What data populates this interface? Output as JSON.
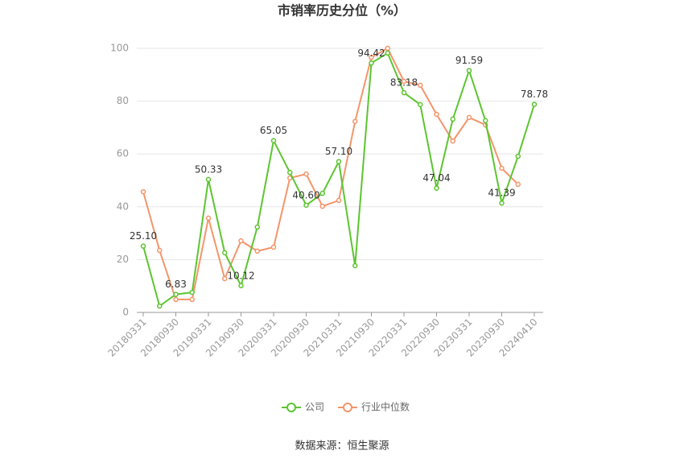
{
  "chart_data": {
    "type": "line",
    "title": "市销率历史分位（%）",
    "categories": [
      "20180331",
      null,
      "20180930",
      null,
      "20190331",
      null,
      "20190930",
      null,
      "20200331",
      null,
      "20200930",
      null,
      "20210331",
      null,
      "20210930",
      null,
      "20220331",
      null,
      "20220930",
      null,
      "20230331",
      null,
      "20230930",
      null,
      "20240410"
    ],
    "series": [
      {
        "name": "公司",
        "color": "#5cc530",
        "values": [
          25.1,
          2.4,
          6.83,
          7.6,
          50.33,
          22.6,
          10.12,
          32.3,
          65.05,
          53.0,
          40.6,
          45.1,
          57.1,
          17.7,
          94.42,
          98.2,
          83.18,
          78.7,
          47.04,
          73.2,
          91.59,
          72.6,
          41.39,
          59.1,
          78.78
        ],
        "value_labels": [
          "25.10",
          null,
          "6.83",
          null,
          "50.33",
          null,
          "10.12",
          null,
          "65.05",
          null,
          "40.60",
          null,
          "57.10",
          null,
          "94.42",
          null,
          "83.18",
          null,
          "47.04",
          null,
          "91.59",
          null,
          "41.39",
          null,
          "78.78"
        ]
      },
      {
        "name": "行业中位数",
        "color": "#f4956a",
        "values": [
          45.7,
          23.5,
          4.9,
          4.9,
          35.7,
          12.8,
          27.1,
          23.2,
          24.7,
          50.9,
          52.4,
          40.2,
          42.4,
          72.3,
          96.6,
          100,
          87.5,
          86.0,
          75.0,
          64.9,
          73.8,
          71.0,
          54.6,
          48.5,
          null
        ]
      }
    ],
    "ylim": [
      0,
      100
    ],
    "yticks": [
      0,
      20,
      40,
      60,
      80,
      100
    ],
    "grid": true,
    "source": "数据来源：恒生聚源"
  }
}
